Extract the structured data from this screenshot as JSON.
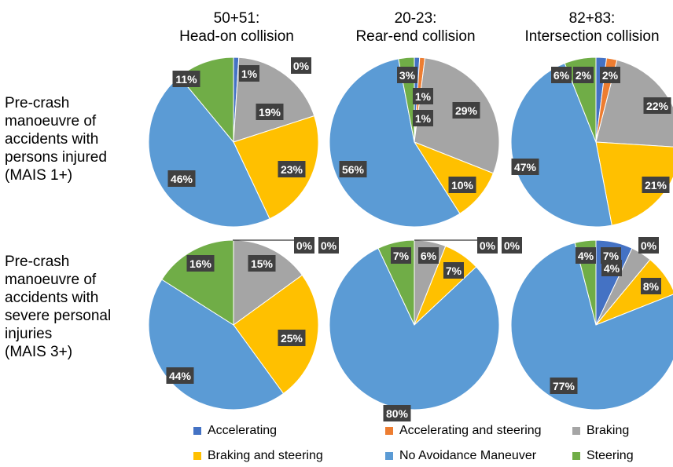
{
  "column_titles": [
    {
      "line1": "50+51:",
      "line2": "Head-on collision"
    },
    {
      "line1": "20-23:",
      "line2": "Rear-end collision"
    },
    {
      "line1": "82+83:",
      "line2": "Intersection collision"
    }
  ],
  "row_labels": [
    {
      "lines": [
        "Pre-crash",
        "manoeuvre of",
        "accidents with",
        "persons injured",
        "(MAIS 1+)"
      ]
    },
    {
      "lines": [
        "Pre-crash",
        "manoeuvre of",
        "accidents with",
        "severe personal",
        "injuries",
        "(MAIS 3+)"
      ]
    }
  ],
  "legend": [
    {
      "label": "Accelerating",
      "color": "#4472C4"
    },
    {
      "label": "Accelerating and steering",
      "color": "#ED7D31"
    },
    {
      "label": "Braking",
      "color": "#A5A5A5"
    },
    {
      "label": "Braking and steering",
      "color": "#FFC000"
    },
    {
      "label": "No Avoidance Maneuver",
      "color": "#5B9BD5"
    },
    {
      "label": "Steering",
      "color": "#70AD47"
    }
  ],
  "chart_data": [
    {
      "type": "pie",
      "title": "50+51: Head-on collision",
      "row": "MAIS 1+",
      "categories": [
        "Accelerating",
        "Accelerating and steering",
        "Braking",
        "Braking and steering",
        "No Avoidance Maneuver",
        "Steering"
      ],
      "values": [
        1,
        0,
        19,
        23,
        46,
        11
      ],
      "labels": [
        "1%",
        "0%",
        "19%",
        "23%",
        "46%",
        "11%"
      ]
    },
    {
      "type": "pie",
      "title": "20-23: Rear-end collision",
      "row": "MAIS 1+",
      "categories": [
        "Accelerating",
        "Accelerating and steering",
        "Braking",
        "Braking and steering",
        "No Avoidance Maneuver",
        "Steering"
      ],
      "values": [
        1,
        1,
        29,
        10,
        56,
        3
      ],
      "labels": [
        "1%",
        "1%",
        "29%",
        "10%",
        "56%",
        "3%"
      ]
    },
    {
      "type": "pie",
      "title": "82+83: Intersection collision",
      "row": "MAIS 1+",
      "categories": [
        "Accelerating",
        "Accelerating and steering",
        "Braking",
        "Braking and steering",
        "No Avoidance Maneuver",
        "Steering"
      ],
      "values": [
        2,
        2,
        22,
        21,
        47,
        6
      ],
      "labels": [
        "2%",
        "2%",
        "22%",
        "21%",
        "47%",
        "6%"
      ]
    },
    {
      "type": "pie",
      "title": "50+51: Head-on collision",
      "row": "MAIS 3+",
      "categories": [
        "Accelerating",
        "Accelerating and steering",
        "Braking",
        "Braking and steering",
        "No Avoidance Maneuver",
        "Steering"
      ],
      "values": [
        0,
        0,
        15,
        25,
        44,
        16
      ],
      "labels": [
        "0%",
        "0%",
        "15%",
        "25%",
        "44%",
        "16%"
      ]
    },
    {
      "type": "pie",
      "title": "20-23: Rear-end collision",
      "row": "MAIS 3+",
      "categories": [
        "Accelerating",
        "Accelerating and steering",
        "Braking",
        "Braking and steering",
        "No Avoidance Maneuver",
        "Steering"
      ],
      "values": [
        0,
        0,
        6,
        7,
        80,
        7
      ],
      "labels": [
        "0%",
        "0%",
        "6%",
        "7%",
        "80%",
        "7%"
      ]
    },
    {
      "type": "pie",
      "title": "82+83: Intersection collision",
      "row": "MAIS 3+",
      "categories": [
        "Accelerating",
        "Accelerating and steering",
        "Braking",
        "Braking and steering",
        "No Avoidance Maneuver",
        "Steering"
      ],
      "values": [
        7,
        0,
        4,
        8,
        77,
        4
      ],
      "labels": [
        "7%",
        "0%",
        "4%",
        "8%",
        "77%",
        "4%"
      ]
    }
  ]
}
